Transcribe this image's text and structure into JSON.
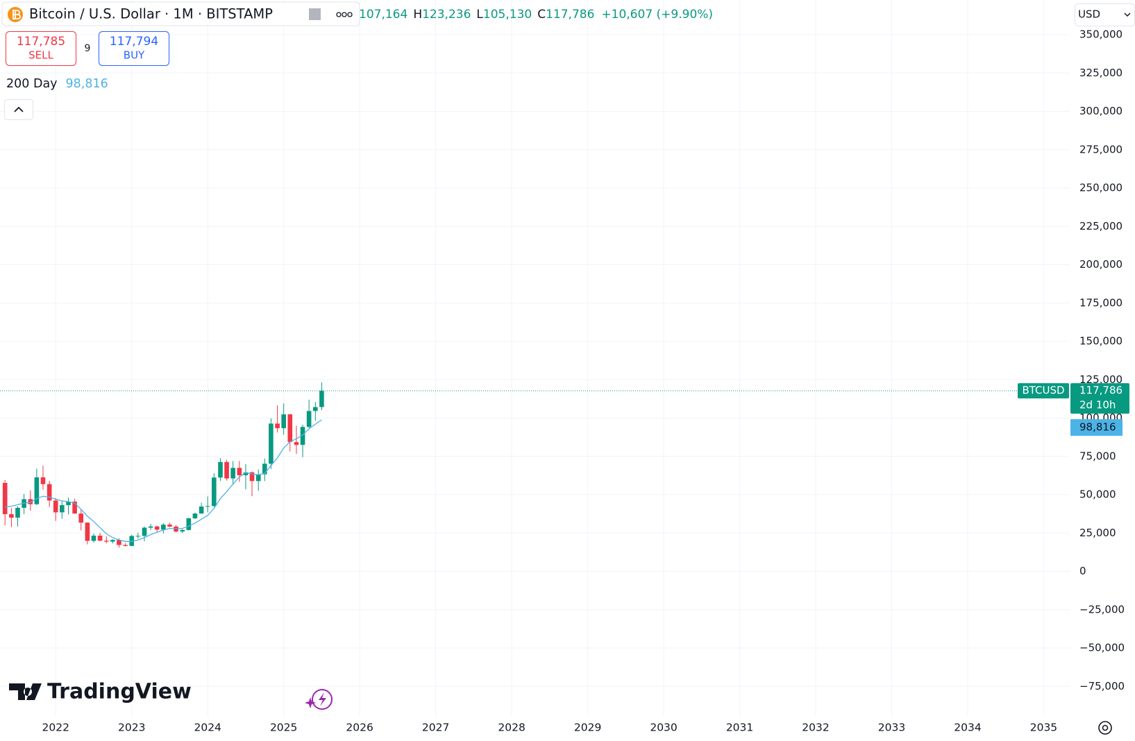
{
  "ui": {
    "symbol": "Bitcoin / U.S. Dollar · 1M · BITSTAMP",
    "ohlc": [
      {
        "value": "107,164"
      },
      {
        "label": "H",
        "value": "123,236"
      },
      {
        "label": "L",
        "value": "105,130"
      },
      {
        "label": "C",
        "value": "117,786"
      }
    ],
    "change": "+10,607 (+9.90%)",
    "currency": "USD",
    "sell": {
      "price": "117,785",
      "label": "SELL"
    },
    "spread": "9",
    "buy": {
      "price": "117,794",
      "label": "BUY"
    },
    "indicator_value": "98,816",
    "countdown": "2d 10h",
    "brand": "TradingView"
  },
  "chart_data": {
    "type": "candlestick",
    "x": [
      2021.333,
      2021.417,
      2021.5,
      2021.583,
      2021.667,
      2021.75,
      2021.833,
      2021.917,
      2022,
      2022.083,
      2022.167,
      2022.25,
      2022.333,
      2022.417,
      2022.5,
      2022.583,
      2022.667,
      2022.75,
      2022.833,
      2022.917,
      2023,
      2023.083,
      2023.167,
      2023.25,
      2023.333,
      2023.417,
      2023.5,
      2023.583,
      2023.667,
      2023.75,
      2023.833,
      2023.917,
      2024,
      2024.083,
      2024.167,
      2024.25,
      2024.333,
      2024.417,
      2024.5,
      2024.583,
      2024.667,
      2024.75,
      2024.833,
      2024.917,
      2025,
      2025.083,
      2025.167,
      2025.25,
      2025.333,
      2025.417,
      2025.5
    ],
    "series": [
      {
        "name": "BTCUSD",
        "up_color": "#089981",
        "down_color": "#f23645",
        "open": [
          57700,
          37300,
          35040,
          41460,
          47100,
          43800,
          61300,
          56900,
          46200,
          38500,
          43200,
          45500,
          37700,
          31800,
          19900,
          23300,
          20000,
          19400,
          20500,
          17200,
          16600,
          23100,
          23150,
          28500,
          29300,
          27200,
          30500,
          29200,
          26000,
          27000,
          34600,
          37700,
          42300,
          42600,
          61200,
          71300,
          60600,
          67500,
          62700,
          64600,
          58900,
          63300,
          70200,
          96400,
          93400,
          102400,
          84300,
          82500,
          94200,
          104600,
          107164
        ],
        "high": [
          59600,
          41300,
          42400,
          50500,
          52900,
          67000,
          69000,
          59000,
          47900,
          45800,
          48200,
          47400,
          40000,
          31900,
          24700,
          25200,
          22800,
          21000,
          21500,
          18400,
          23900,
          25200,
          29200,
          31000,
          29800,
          31400,
          31800,
          30200,
          27500,
          35000,
          38400,
          44700,
          48900,
          64000,
          73800,
          72800,
          71900,
          72000,
          70000,
          65100,
          66500,
          73600,
          99800,
          108300,
          109600,
          102700,
          95000,
          95700,
          112000,
          110500,
          123236
        ],
        "low": [
          30000,
          28800,
          29300,
          37300,
          39600,
          43300,
          53300,
          42000,
          32900,
          34300,
          37200,
          37600,
          26700,
          17600,
          18800,
          19600,
          18200,
          18200,
          15500,
          16300,
          16500,
          21400,
          19600,
          26900,
          25800,
          24800,
          28900,
          25400,
          24900,
          26600,
          34100,
          37600,
          38500,
          41900,
          59000,
          59200,
          56500,
          58400,
          53500,
          49000,
          52500,
          58900,
          66800,
          90500,
          89200,
          78200,
          76600,
          74500,
          93400,
          98200,
          105130
        ],
        "close": [
          37300,
          35040,
          41460,
          47100,
          43800,
          61300,
          56900,
          46200,
          38500,
          43200,
          45500,
          37700,
          31800,
          19900,
          23300,
          20000,
          19400,
          20500,
          17200,
          16600,
          23100,
          23150,
          28500,
          29300,
          27200,
          30500,
          29200,
          26000,
          27000,
          34600,
          37700,
          42300,
          42600,
          61200,
          71300,
          60600,
          67500,
          62700,
          64600,
          58900,
          63300,
          70200,
          96400,
          93400,
          102400,
          84300,
          82500,
          94200,
          104600,
          107164,
          117786
        ]
      },
      {
        "name": "200 Day",
        "color": "#4cb3e6",
        "values": [
          42000,
          42500,
          43500,
          44500,
          45000,
          47500,
          49000,
          48500,
          47000,
          46000,
          45500,
          44500,
          40500,
          36000,
          32500,
          28500,
          24500,
          22000,
          20500,
          19500,
          19500,
          20500,
          22000,
          24000,
          25500,
          27000,
          28000,
          28000,
          28000,
          29500,
          31500,
          34000,
          36500,
          41000,
          47500,
          52000,
          57000,
          61500,
          64500,
          63500,
          63000,
          64000,
          69000,
          74000,
          80500,
          84500,
          86500,
          89000,
          93000,
          96000,
          98816
        ]
      }
    ],
    "xlim": [
      2021.267,
      2035.343
    ],
    "xticks": [
      2022,
      2023,
      2024,
      2025,
      2026,
      2027,
      2028,
      2029,
      2030,
      2031,
      2032,
      2033,
      2034,
      2035
    ],
    "ylim": [
      -94340,
      372640
    ],
    "yticks": [
      {
        "value": -75000,
        "label": "−75,000"
      },
      {
        "value": -50000,
        "label": "−50,000"
      },
      {
        "value": -25000,
        "label": "−25,000"
      },
      0,
      {
        "value": 25000,
        "label": "25,000"
      },
      {
        "value": 50000,
        "label": "50,000"
      },
      {
        "value": 75000,
        "label": "75,000"
      },
      {
        "value": 100000,
        "label": "100,000"
      },
      {
        "value": 125000,
        "label": "125,000"
      },
      {
        "value": 150000,
        "label": "150,000"
      },
      {
        "value": 175000,
        "label": "175,000"
      },
      {
        "value": 200000,
        "label": "200,000"
      },
      {
        "value": 225000,
        "label": "225,000"
      },
      {
        "value": 250000,
        "label": "250,000"
      },
      {
        "value": 275000,
        "label": "275,000"
      },
      {
        "value": 300000,
        "label": "300,000"
      },
      {
        "value": 325000,
        "label": "325,000"
      },
      {
        "value": 350000,
        "label": "350,000"
      }
    ],
    "grid": true
  }
}
